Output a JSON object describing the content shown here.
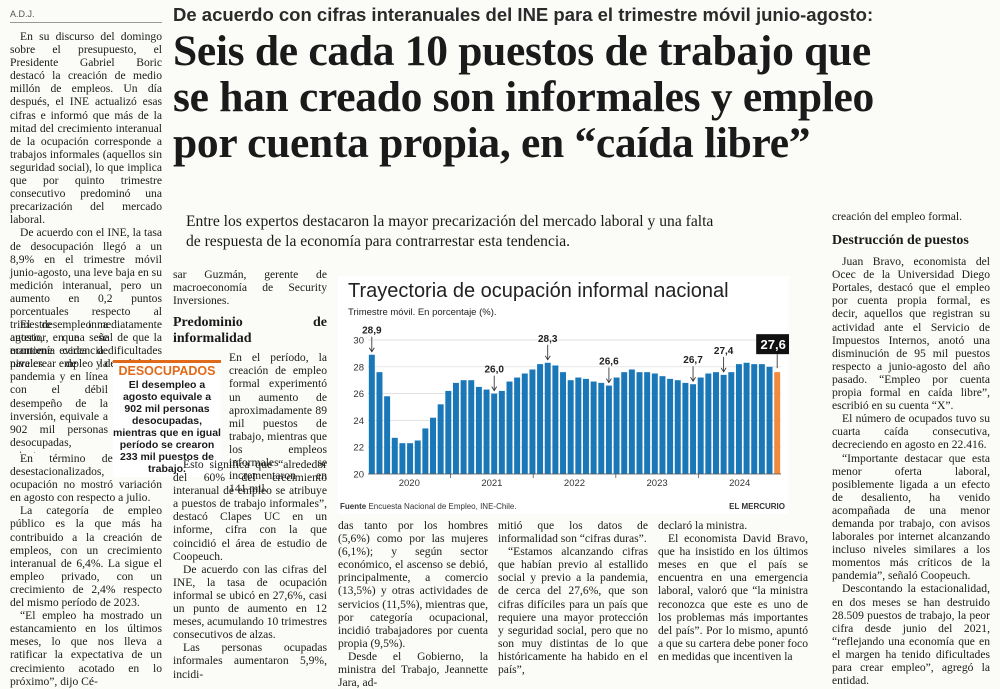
{
  "byline": "A.D.J.",
  "overline": "De acuerdo con cifras interanuales del INE para el trimestre móvil junio-agosto:",
  "headline": [
    "Seis de cada 10 puestos de trabajo que",
    "se han creado son informales y empleo",
    "por cuenta propia, en “caída libre”"
  ],
  "lede": [
    "Entre los expertos destacaron la mayor precarización del mercado laboral y una falta",
    "de respuesta de la economía para contrarrestar esta tendencia."
  ],
  "col1": {
    "p1": "En su discurso del domingo sobre el presupuesto, el Presidente Gabriel Boric destacó la creación de medio millón de empleos. Un día después, el INE actualizó esas cifras e informó que más de la mitad del crecimiento interanual de la ocupación corresponde a trabajos informales (aquellos sin seguridad social), lo que implica que por quinto trimestre consecutivo predominó una precarización del mercado laboral.",
    "p2": "De acuerdo con el INE, la tasa de desocupación llegó a un 8,9% en el trimestre móvil junio-agosto, una leve baja en su medición interanual, pero un aumento en 0,2 puntos porcentuales respecto al trimestre inmediatamente anterior, en una señal de que la economía evidencia dificultades para crear empleo y de calidad.",
    "p3a": "El desempleo a agosto, que se mantiene cerca de niveles de la pandemia y en línea con el débil desempeño de la inversión, equivale a 902 mil personas desocupadas, mientras que en igual período se crearon 233 mil puestos de trabajo.",
    "p3b": "En término de niveles desestacionalizados, la ocupación no mostró variación en agosto con respecto a julio.",
    "p4": "La categoría de empleo público es la que más ha contribuido a la creación de empleos, con un crecimiento interanual de 6,4%. La sigue el empleo privado, con un crecimiento de 2,4% respecto del mismo período de 2023.",
    "p5": "“El empleo ha mostrado un estancamiento en los últimos meses, lo que nos lleva a ratificar la expectativa de un crecimiento acotado en lo próximo”, dijo Cé-"
  },
  "desocupados": {
    "tag": "DESOCUPADOS",
    "text": "El desempleo a agosto equivale a 902 mil personas desocupadas, mientras que en igual período se crearon 233 mil puestos de trabajo."
  },
  "col2": {
    "intro": "sar Guzmán, gerente de macroeconomía de Security Inversiones.",
    "subhead": "Predominio de informalidad",
    "p1": "En el período, la creación de empleo formal experimentó un aumento de aproximadamente 89 mil puestos de trabajo, mientras que los empleos informales se incrementaron en 141 mil.",
    "p2": "Esto significa que “alrededor del 60% del crecimiento interanual de empleo se atribuye a puestos de trabajo informales”, destacó Clapes UC en un informe, cifra con la que coincidió el área de estudio de Coopeuch.",
    "p3": "De acuerdo con las cifras del INE, la tasa de ocupación informal se ubicó en 27,6%, casi un punto de aumento en 12 meses, acumulando 10 trimestres consecutivos de alzas.",
    "p4": "Las personas ocupadas informales aumentaron 5,9%, incidi-"
  },
  "col3": {
    "p1": "das tanto por los hombres (5,6%) como por las mujeres (6,1%); y según sector económico, el ascenso se debió, principalmente, a comercio (13,5%) y otras actividades de servicios (11,5%), mientras que, por categoría ocupacional, incidió trabajadores por cuenta propia (9,5%).",
    "p2": "Desde el Gobierno, la ministra del Trabajo, Jeannette Jara, ad-"
  },
  "col4": {
    "p1": "mitió que los datos de informalidad son “cifras duras”.",
    "p2": "“Estamos alcanzando cifras que habían previo al estallido social y previo a la pandemia, de cerca del 27,6%, que son cifras difíciles para un país que requiere una mayor protección y seguridad social, pero que no son muy distintas de lo que históricamente ha habido en el país”,"
  },
  "col5": {
    "p1": "declaró la ministra.",
    "p2": "El economista David Bravo, que ha insistido en los últimos meses en que el país se encuentra en una emergencia laboral, valoró que “la ministra reconozca que este es uno de los problemas más importantes del país”. Por lo mismo, apuntó a que su cartera debe poner foco en medidas que incentiven la"
  },
  "col6": {
    "top": "creación del empleo formal.",
    "subhead": "Destrucción de puestos",
    "p1": "Juan Bravo, economista del Ocec de la Universidad Diego Portales, destacó que el empleo por cuenta propia formal, es decir, aquellos que registran su actividad ante el Servicio de Impuestos Internos, anotó una disminución de 95 mil puestos respecto a junio-agosto del año pasado. “Empleo por cuenta propia formal en caída libre”, escribió en su cuenta “X”.",
    "p2": "El número de ocupados tuvo su cuarta caída consecutiva, decreciendo en agosto en 22.416.",
    "p3": "“Importante destacar que esta menor oferta laboral, posiblemente ligada a un efecto de desaliento, ha venido acompañada de una menor demanda por trabajo, con avisos laborales por internet alcanzando incluso niveles similares a los momentos más críticos de la pandemia”, señaló Coopeuch.",
    "p4": "Descontando la estacionalidad, en dos meses se han destruido 28.509 puestos de trabajo, la peor cifra desde junio del 2021, “reflejando una economía que en el margen ha tenido dificultades para crear empleo”, agregó la entidad."
  },
  "chart": {
    "title": "Trayectoria de ocupación informal nacional",
    "subtitle": "Trimestre móvil. En porcentaje (%).",
    "source_label": "Fuente",
    "source_text": " Encuesta Nacional de Empleo, INE-Chile.",
    "brand": "EL MERCURIO",
    "bar_color": "#1a78b8",
    "highlight_color": "#f08a3c",
    "grid_color": "#d8d8d8"
  },
  "chart_data": {
    "type": "bar",
    "title": "Trayectoria de ocupación informal nacional",
    "ylabel": "Trimestre móvil. En porcentaje (%).",
    "ylim": [
      20,
      30
    ],
    "yticks": [
      20,
      22,
      24,
      26,
      28,
      30
    ],
    "xtick_labels": [
      "2020",
      "2021",
      "2022",
      "2023",
      "2024"
    ],
    "values": [
      28.9,
      27.6,
      25.8,
      22.7,
      22.3,
      22.3,
      22.5,
      23.4,
      24.2,
      25.2,
      26.2,
      26.8,
      27.0,
      27.0,
      26.5,
      26.3,
      26.0,
      26.2,
      26.9,
      27.2,
      27.5,
      27.8,
      28.2,
      28.3,
      28.1,
      27.6,
      27.0,
      27.2,
      27.1,
      26.9,
      26.8,
      26.6,
      27.2,
      27.6,
      27.8,
      27.6,
      27.6,
      27.5,
      27.3,
      27.1,
      27.0,
      26.8,
      26.7,
      27.2,
      27.5,
      27.6,
      27.4,
      27.6,
      28.2,
      28.3,
      28.2,
      28.2,
      28.0,
      27.6
    ],
    "annotations": [
      {
        "index": 0,
        "label": "28,9"
      },
      {
        "index": 16,
        "label": "26,0"
      },
      {
        "index": 23,
        "label": "28,3"
      },
      {
        "index": 31,
        "label": "26,6"
      },
      {
        "index": 42,
        "label": "26,7"
      },
      {
        "index": 46,
        "label": "27,4"
      },
      {
        "index": 53,
        "label": "27,6",
        "highlight": true
      }
    ]
  }
}
